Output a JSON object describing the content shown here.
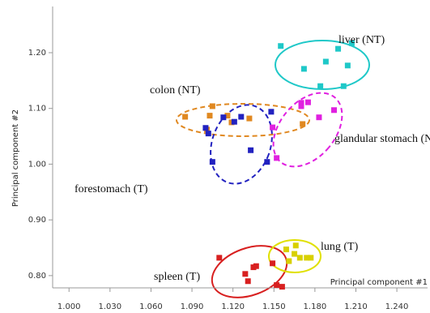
{
  "chart_data": {
    "type": "scatter",
    "xlabel": "Principal component #1",
    "ylabel": "Principal component #2",
    "xlim": [
      0.988,
      1.2607
    ],
    "ylim": [
      0.778,
      1.28
    ],
    "xticks": [
      {
        "value": 1.0,
        "label": "1.000"
      },
      {
        "value": 1.03,
        "label": "1.030"
      },
      {
        "value": 1.06,
        "label": "1.060"
      },
      {
        "value": 1.09,
        "label": "1.090"
      },
      {
        "value": 1.12,
        "label": "1.120"
      },
      {
        "value": 1.15,
        "label": "1.150"
      },
      {
        "value": 1.18,
        "label": "1.180"
      },
      {
        "value": 1.21,
        "label": "1.210"
      },
      {
        "value": 1.24,
        "label": "1.240"
      }
    ],
    "yticks": [
      {
        "value": 0.8,
        "label": "0.80"
      },
      {
        "value": 0.9,
        "label": "0.90"
      },
      {
        "value": 1.0,
        "label": "1.00"
      },
      {
        "value": 1.1,
        "label": "1.10"
      },
      {
        "value": 1.2,
        "label": "1.20"
      }
    ],
    "series": [
      {
        "name": "liver (NT)",
        "color": "#1fc8c8",
        "x": [
          1.155,
          1.207,
          1.197,
          1.172,
          1.188,
          1.204,
          1.184,
          1.201
        ],
        "values": [
          1.212,
          1.217,
          1.207,
          1.171,
          1.184,
          1.177,
          1.14,
          1.14
        ]
      },
      {
        "name": "colon (NT)",
        "color": "#e08820",
        "x": [
          1.085,
          1.105,
          1.103,
          1.116,
          1.119,
          1.132,
          1.101,
          1.171
        ],
        "values": [
          1.085,
          1.104,
          1.087,
          1.087,
          1.075,
          1.082,
          1.062,
          1.072
        ]
      },
      {
        "name": "glandular stomach (NT)",
        "color": "#2222c0",
        "x": [
          1.105,
          1.1,
          1.102,
          1.113,
          1.126,
          1.121,
          1.133,
          1.145,
          1.148
        ],
        "values": [
          1.004,
          1.065,
          1.055,
          1.084,
          1.085,
          1.076,
          1.025,
          1.004,
          1.094
        ]
      },
      {
        "name": "forestomach (T)",
        "color": "#e020e0",
        "x": [
          1.149,
          1.152,
          1.17,
          1.175,
          1.17,
          1.183,
          1.194
        ],
        "values": [
          1.066,
          1.011,
          1.104,
          1.111,
          1.11,
          1.084,
          1.097
        ]
      },
      {
        "name": "spleen (T)",
        "color": "#d82020",
        "x": [
          1.11,
          1.129,
          1.131,
          1.135,
          1.137,
          1.149,
          1.152,
          1.156
        ],
        "values": [
          0.832,
          0.803,
          0.79,
          0.815,
          0.817,
          0.822,
          0.783,
          0.78
        ]
      },
      {
        "name": "lung (T)",
        "color": "#d8d000",
        "x": [
          1.159,
          1.161,
          1.166,
          1.169,
          1.174,
          1.177,
          1.165
        ],
        "values": [
          0.847,
          0.826,
          0.854,
          0.832,
          0.832,
          0.832,
          0.839
        ]
      }
    ]
  }
}
